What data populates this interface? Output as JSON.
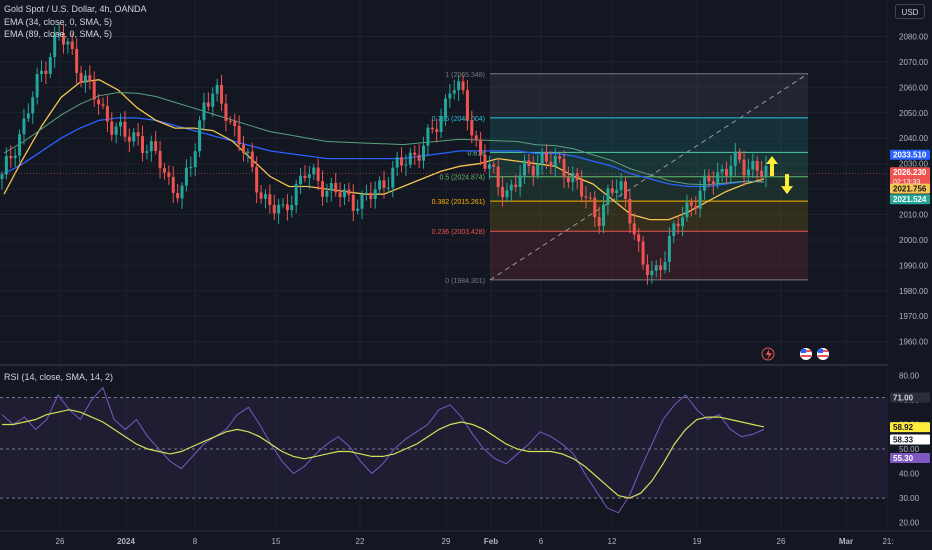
{
  "symbol_line": "Gold Spot / U.S. Dollar, 4h, OANDA",
  "ema1_label": "EMA (34, close, 0, SMA, 5)",
  "ema2_label": "EMA (89, close, 0, SMA, 5)",
  "rsi_label": "RSI (14, close, SMA, 14, 2)",
  "currency": "USD",
  "colors": {
    "background": "#131722",
    "candle_up": "#26a69a",
    "candle_down": "#ef5350",
    "ema_fast": "#f5c451",
    "ema_slow": "#2962ff",
    "rsi": "#7e57c2",
    "rsi_ma": "#d4e157",
    "fib_ext": "#5aa17f",
    "arrow": "#ffeb3b"
  },
  "chart_data": [
    {
      "type": "candlestick",
      "title": "Gold Spot / U.S. Dollar, 4h, OANDA",
      "x_ticks": [
        "26",
        "2024",
        "8",
        "15",
        "22",
        "29",
        "Feb",
        "6",
        "12",
        "19",
        "26",
        "Mar",
        "21:"
      ],
      "ylim": [
        1952,
        2092
      ],
      "y_ticks": [
        1960,
        1970,
        1980,
        1990,
        2000,
        2010,
        2020,
        2030,
        2040,
        2050,
        2060,
        2070,
        2080
      ],
      "series": [
        {
          "name": "EMA (34, close, 0, SMA, 5)",
          "values": [
            2018,
            2032,
            2045,
            2056,
            2062,
            2063,
            2059,
            2052,
            2047,
            2044,
            2044,
            2043,
            2039,
            2032,
            2025,
            2021,
            2021,
            2020,
            2019,
            2018,
            2018,
            2021,
            2024,
            2027,
            2029,
            2030,
            2032,
            2031,
            2030,
            2029,
            2025,
            2022,
            2016,
            2010,
            2008,
            2008,
            2011,
            2015,
            2019,
            2022,
            2024
          ]
        },
        {
          "name": "EMA (89, close, 0, SMA, 5)",
          "values": [
            2026,
            2030,
            2035,
            2040,
            2044,
            2047,
            2048,
            2048,
            2047,
            2045,
            2043,
            2041,
            2039,
            2037,
            2035,
            2034,
            2033,
            2032,
            2032,
            2032,
            2032,
            2032,
            2033,
            2034,
            2035,
            2035,
            2035,
            2035,
            2034,
            2034,
            2033,
            2031,
            2029,
            2026,
            2024,
            2022,
            2021,
            2021,
            2022,
            2023,
            2023
          ]
        }
      ],
      "ohlc_path": [
        2024,
        2036,
        2046,
        2060,
        2071,
        2081,
        2075,
        2066,
        2058,
        2050,
        2045,
        2040,
        2041,
        2036,
        2031,
        2022,
        2018,
        2033,
        2055,
        2057,
        2050,
        2041,
        2029,
        2019,
        2013,
        2010,
        2020,
        2026,
        2024,
        2020,
        2018,
        2016,
        2015,
        2018,
        2023,
        2028,
        2031,
        2035,
        2040,
        2047,
        2063,
        2056,
        2040,
        2031,
        2022,
        2019,
        2025,
        2028,
        2033,
        2030,
        2028,
        2024,
        2015,
        2009,
        2018,
        2021,
        2010,
        1989,
        1986,
        1995,
        2005,
        2013,
        2018,
        2023,
        2027,
        2031,
        2028,
        2030,
        2026
      ],
      "fibonacci": {
        "levels": [
          {
            "ratio": "1",
            "value": 2065.348,
            "label": "1 (2065.348)"
          },
          {
            "ratio": "0.786",
            "value": 2048.004,
            "label": "0.786 (2048.004)"
          },
          {
            "ratio": "0.618",
            "value": 2034.44,
            "label": "0.618"
          },
          {
            "ratio": "0.5",
            "value": 2024.874,
            "label": "0.5 (2024.874)"
          },
          {
            "ratio": "0.382",
            "value": 2015.261,
            "label": "0.382 (2015.261)"
          },
          {
            "ratio": "0.236",
            "value": 2003.428,
            "label": "0.236 (2003.428)"
          },
          {
            "ratio": "0",
            "value": 1984.301,
            "label": "0 (1984.301)"
          }
        ]
      },
      "price_badges": [
        {
          "value": "2033.510",
          "color": "#2962ff"
        },
        {
          "value": "2026.230",
          "sub": "02:13:33",
          "color": "#ef5350"
        },
        {
          "value": "2021.756",
          "color": "#f5c451"
        },
        {
          "value": "2021.524",
          "color": "#26a69a"
        }
      ]
    },
    {
      "type": "line",
      "title": "RSI (14, close, SMA, 14, 2)",
      "ylim": [
        17,
        83
      ],
      "y_ticks": [
        20,
        30,
        40,
        50,
        60,
        70,
        80
      ],
      "bands": [
        30,
        50,
        71
      ],
      "band_labels": [
        "80.00",
        "70.00",
        "60.00",
        "50.00",
        "40.00",
        "30.00",
        "20.00"
      ],
      "series": [
        {
          "name": "RSI",
          "values": [
            64,
            60,
            63,
            58,
            62,
            72,
            66,
            62,
            70,
            75,
            62,
            58,
            62,
            55,
            50,
            45,
            42,
            47,
            52,
            55,
            58,
            64,
            67,
            60,
            52,
            45,
            40,
            43,
            48,
            52,
            55,
            51,
            45,
            40,
            44,
            50,
            54,
            57,
            60,
            66,
            68,
            63,
            56,
            50,
            46,
            44,
            48,
            52,
            57,
            55,
            52,
            48,
            40,
            33,
            26,
            24,
            31,
            42,
            52,
            62,
            68,
            72,
            66,
            62,
            64,
            58,
            55,
            56,
            58
          ]
        },
        {
          "name": "RSI MA",
          "values": [
            60,
            60,
            61,
            62,
            64,
            65,
            66,
            65,
            63,
            61,
            58,
            55,
            52,
            50,
            49,
            48,
            49,
            51,
            53,
            55,
            57,
            58,
            57,
            55,
            52,
            49,
            47,
            46,
            47,
            48,
            49,
            49,
            48,
            47,
            47,
            48,
            50,
            52,
            55,
            58,
            60,
            61,
            60,
            58,
            55,
            52,
            50,
            49,
            49,
            49,
            48,
            46,
            43,
            39,
            35,
            31,
            30,
            32,
            37,
            44,
            52,
            58,
            62,
            63,
            63,
            62,
            61,
            60,
            59
          ]
        }
      ],
      "value_badges": [
        {
          "value": "71.00",
          "color": "#2a2e39"
        },
        {
          "value": "58.92",
          "color": "#ffeb3b"
        },
        {
          "value": "58.33",
          "color": "#ffffff"
        },
        {
          "value": "55.30",
          "color": "#7e57c2"
        }
      ]
    }
  ]
}
